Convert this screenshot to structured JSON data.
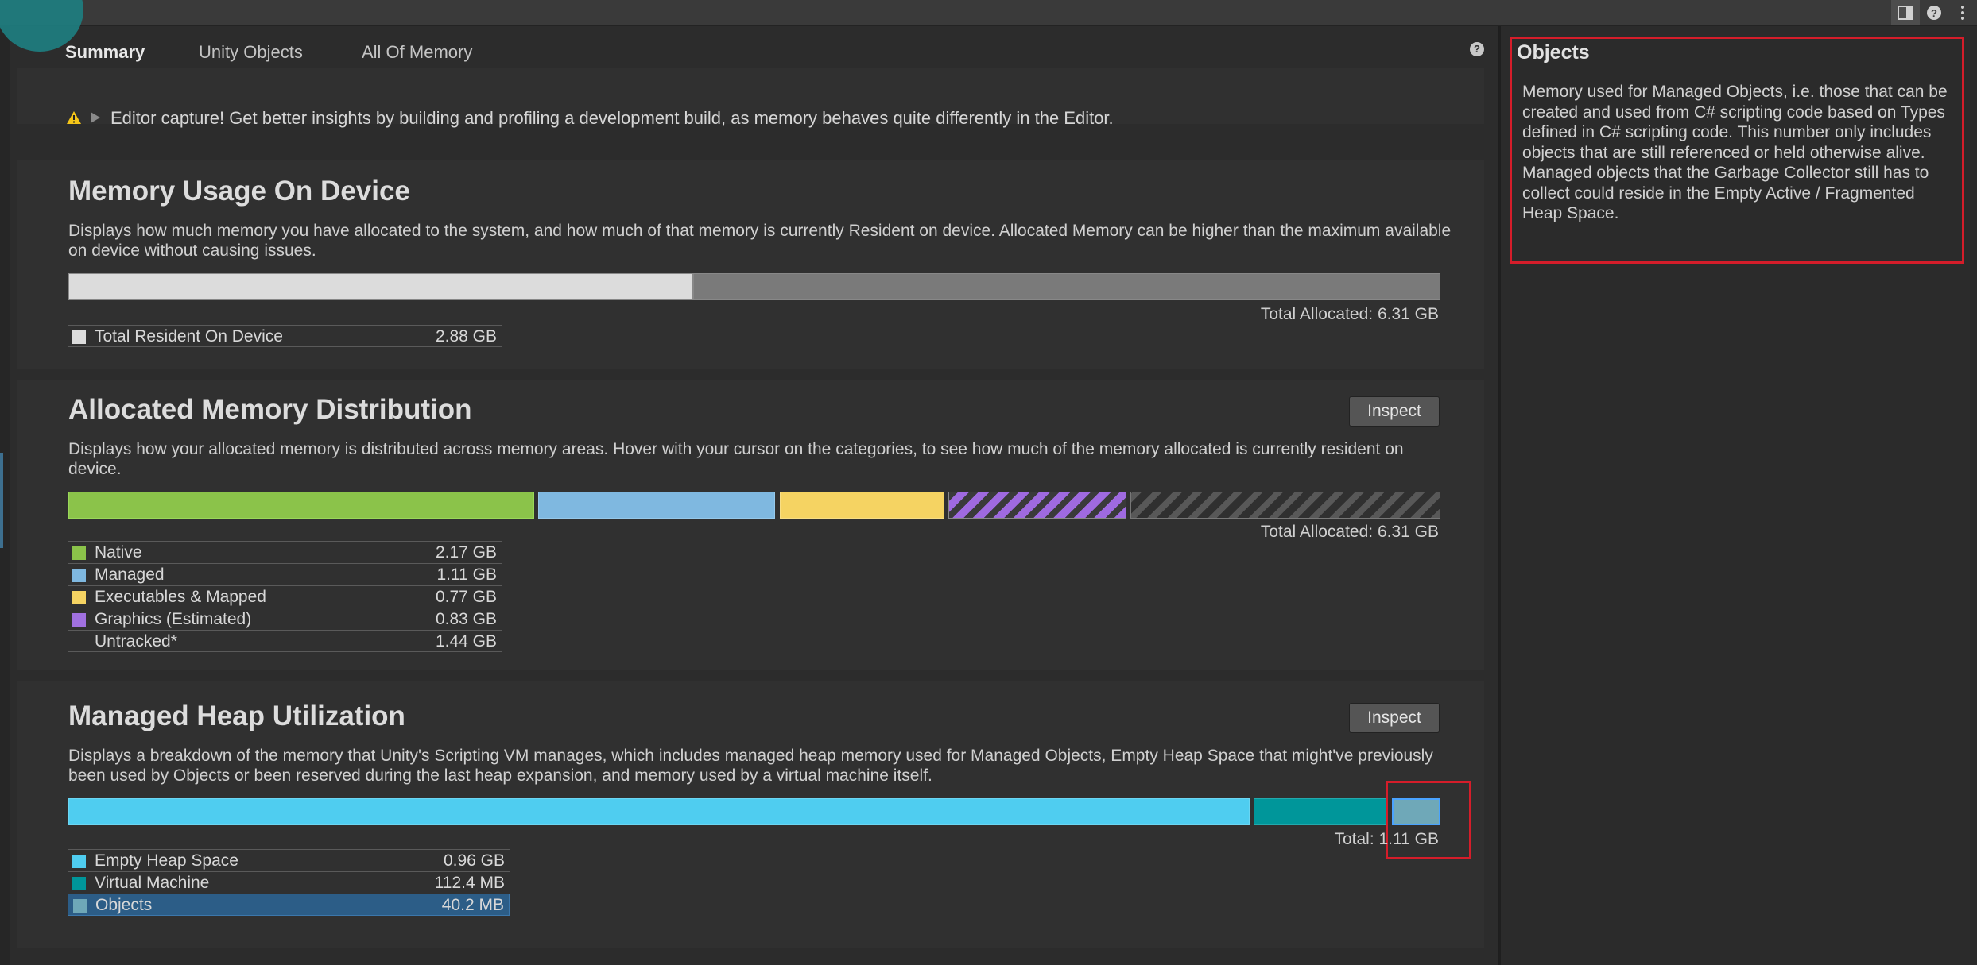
{
  "tabs": [
    {
      "label": "Summary",
      "active": true
    },
    {
      "label": "Unity Objects",
      "active": false
    },
    {
      "label": "All Of Memory",
      "active": false
    }
  ],
  "warning": {
    "text": "Editor capture! Get better insights by building and profiling a development build, as memory behaves quite differently in the Editor."
  },
  "memory_usage": {
    "title": "Memory Usage On Device",
    "description": "Displays how much memory you have allocated to the system, and how much of that memory is currently Resident on device. Allocated Memory can be higher than the maximum available on device without causing issues.",
    "total_label": "Total Allocated: 6.31 GB",
    "legend": [
      {
        "label": "Total Resident On Device",
        "value": "2.88 GB",
        "color": "#dcdcdc"
      }
    ]
  },
  "allocated_distribution": {
    "title": "Allocated Memory Distribution",
    "inspect_label": "Inspect",
    "description": "Displays how your allocated memory is distributed across memory areas. Hover with your cursor on the categories, to see how much of the memory allocated is currently resident on device.",
    "total_label": "Total Allocated: 6.31 GB",
    "legend": [
      {
        "label": "Native",
        "value": "2.17 GB",
        "color": "#8bc34a"
      },
      {
        "label": "Managed",
        "value": "1.11 GB",
        "color": "#7fb8e0"
      },
      {
        "label": "Executables & Mapped",
        "value": "0.77 GB",
        "color": "#f5d362"
      },
      {
        "label": "Graphics (Estimated)",
        "value": "0.83 GB",
        "color": "#a070e0"
      },
      {
        "label": "Untracked*",
        "value": "1.44 GB",
        "color": "#303030"
      }
    ]
  },
  "managed_heap": {
    "title": "Managed Heap Utilization",
    "inspect_label": "Inspect",
    "description": "Displays a breakdown of the memory that Unity's Scripting VM manages, which includes managed heap memory used for Managed Objects, Empty Heap Space that might've previously been used by Objects or been reserved during the last heap expansion, and memory used by a virtual machine itself.",
    "total_label": "Total: 1.11 GB",
    "legend": [
      {
        "label": "Empty Heap Space",
        "value": "0.96 GB",
        "color": "#4fcdf0"
      },
      {
        "label": "Virtual Machine",
        "value": "112.4 MB",
        "color": "#00969a"
      },
      {
        "label": "Objects",
        "value": "40.2 MB",
        "color": "#6fa8b8"
      }
    ]
  },
  "details_panel": {
    "title": "Objects",
    "description": "Memory used for Managed Objects, i.e. those that can be created and used from C# scripting code based on Types defined in C# scripting code. This number only includes objects that are still referenced or held otherwise alive. Managed objects that the Garbage Collector still has to collect could reside in the Empty Active / Fragmented Heap Space."
  }
}
